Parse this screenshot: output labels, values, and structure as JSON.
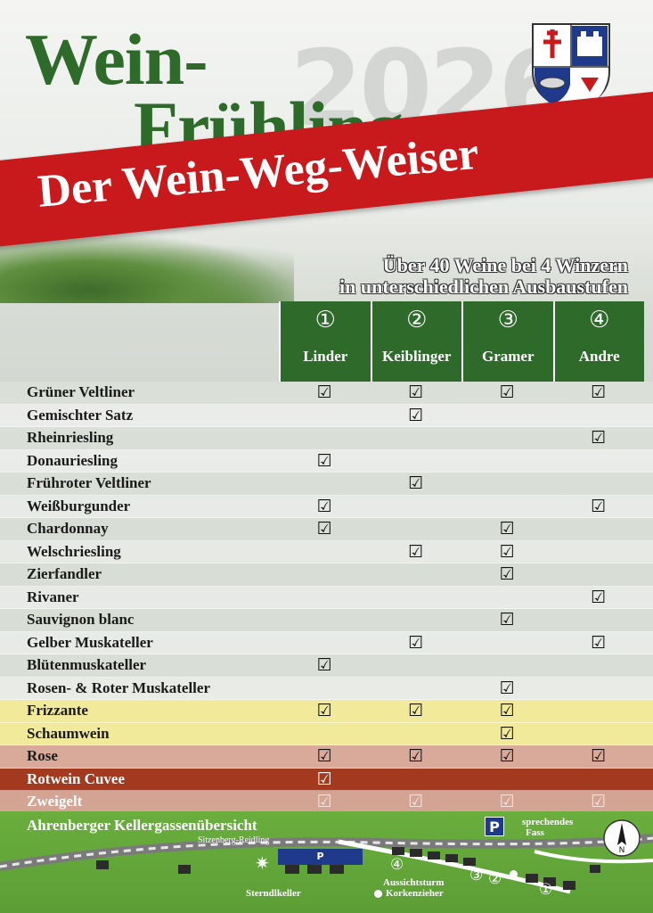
{
  "header": {
    "year": "2026",
    "title_line1": "Wein-",
    "title_line2": "Frühling",
    "banner": "Der Wein-Weg-Weiser",
    "subtitle_line1": "Über 40 Weine bei 4 Winzern",
    "subtitle_line2": "in unterschiedlichen Ausbaustufen"
  },
  "colors": {
    "green": "#2e6b2a",
    "red": "#c8191c",
    "yellow_row": "#f0ea9a",
    "rose_row": "#d9a99a",
    "rotwein_row": "#a3391e",
    "zweigelt_row": "#d3a494"
  },
  "winzer": [
    {
      "num": "①",
      "name": "Linder"
    },
    {
      "num": "②",
      "name": "Keiblinger"
    },
    {
      "num": "③",
      "name": "Gramer"
    },
    {
      "num": "④",
      "name": "Andre"
    }
  ],
  "check_symbol": "☑",
  "wines": [
    {
      "name": "Grüner Veltliner",
      "style": "odd",
      "checks": [
        true,
        true,
        true,
        true
      ]
    },
    {
      "name": "Gemischter Satz",
      "style": "even",
      "checks": [
        false,
        true,
        false,
        false
      ]
    },
    {
      "name": "Rheinriesling",
      "style": "odd",
      "checks": [
        false,
        false,
        false,
        true
      ]
    },
    {
      "name": "Donauriesling",
      "style": "even",
      "checks": [
        true,
        false,
        false,
        false
      ]
    },
    {
      "name": "Frühroter Veltliner",
      "style": "odd",
      "checks": [
        false,
        true,
        false,
        false
      ]
    },
    {
      "name": "Weißburgunder",
      "style": "even",
      "checks": [
        true,
        false,
        false,
        true
      ]
    },
    {
      "name": "Chardonnay",
      "style": "odd",
      "checks": [
        true,
        false,
        true,
        false
      ]
    },
    {
      "name": "Welschriesling",
      "style": "even",
      "checks": [
        false,
        true,
        true,
        false
      ]
    },
    {
      "name": "Zierfandler",
      "style": "odd",
      "checks": [
        false,
        false,
        true,
        false
      ]
    },
    {
      "name": "Rivaner",
      "style": "even",
      "checks": [
        false,
        false,
        false,
        true
      ]
    },
    {
      "name": "Sauvignon blanc",
      "style": "odd",
      "checks": [
        false,
        false,
        true,
        false
      ]
    },
    {
      "name": "Gelber Muskateller",
      "style": "even",
      "checks": [
        false,
        true,
        false,
        true
      ]
    },
    {
      "name": "Blütenmuskateller",
      "style": "odd",
      "checks": [
        true,
        false,
        false,
        false
      ]
    },
    {
      "name": "Rosen- & Roter Muskateller",
      "style": "even",
      "checks": [
        false,
        false,
        true,
        false
      ]
    },
    {
      "name": "Frizzante",
      "style": "yellow",
      "checks": [
        true,
        true,
        true,
        false
      ]
    },
    {
      "name": "Schaumwein",
      "style": "yellow",
      "checks": [
        false,
        false,
        true,
        false
      ]
    },
    {
      "name": "Rose",
      "style": "brown",
      "checks": [
        true,
        true,
        true,
        true
      ]
    },
    {
      "name": "Rotwein Cuvee",
      "style": "darkred",
      "checks": [
        true,
        false,
        false,
        false
      ]
    },
    {
      "name": "Zweigelt",
      "style": "pink",
      "checks": [
        true,
        true,
        true,
        true
      ]
    }
  ],
  "map": {
    "title": "Ahrenberger Kellergassenübersicht",
    "subtitle": "Sitzenberg-Reidling",
    "parking": "P",
    "sterndlkeller": "Sterndlkeller",
    "aussichtsturm": "Aussichtsturm",
    "korkenzieher": "Korkenzieher",
    "sprechendes_fass_1": "sprechendes",
    "sprechendes_fass_2": "Fass",
    "compass": "N",
    "marker_1": "①",
    "marker_2": "②",
    "marker_3": "③",
    "marker_4": "④"
  }
}
